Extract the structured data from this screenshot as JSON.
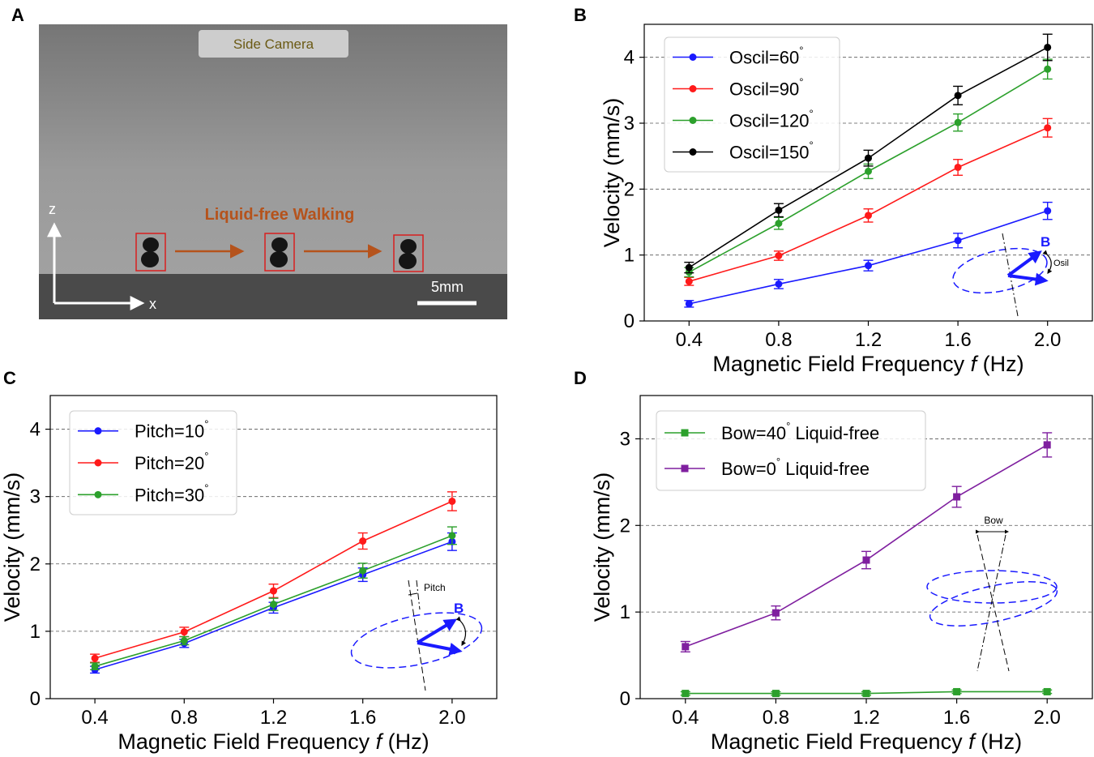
{
  "panel_labels": {
    "a": "A",
    "b": "B",
    "c": "C",
    "d": "D"
  },
  "photo": {
    "caption": "Side Camera",
    "walking_label": "Liquid-free Walking",
    "scale_label": "5mm",
    "axis_z": "z",
    "axis_x": "x",
    "colors": {
      "arrow": "#b5531c",
      "box": "#d91f1f"
    }
  },
  "chart_data": [
    {
      "id": "B",
      "type": "line",
      "xlabel": "Magnetic Field Frequency",
      "xlabel_var": "f",
      "xlabel_unit": "(Hz)",
      "ylabel": "Velocity (mm/s)",
      "x": [
        0.4,
        0.8,
        1.2,
        1.6,
        2.0
      ],
      "xlim": [
        0.2,
        2.2
      ],
      "ylim": [
        0,
        4.5
      ],
      "xticks": [
        "0.4",
        "0.8",
        "1.2",
        "1.6",
        "2.0"
      ],
      "yticks": [
        0,
        1,
        2,
        3,
        4
      ],
      "grid": "horizontal dashed",
      "marker": "circle",
      "legend_position": "top-left",
      "series": [
        {
          "name": "Oscil=60",
          "color": "#1a1aff",
          "values": [
            0.26,
            0.56,
            0.84,
            1.22,
            1.67
          ],
          "errors": [
            0.05,
            0.07,
            0.08,
            0.11,
            0.13
          ]
        },
        {
          "name": "Oscil=90",
          "color": "#ff1a1a",
          "values": [
            0.6,
            0.99,
            1.6,
            2.33,
            2.93
          ],
          "errors": [
            0.06,
            0.07,
            0.1,
            0.12,
            0.14
          ]
        },
        {
          "name": "Oscil=120",
          "color": "#2ca02c",
          "values": [
            0.74,
            1.48,
            2.27,
            3.01,
            3.82
          ],
          "errors": [
            0.07,
            0.09,
            0.11,
            0.13,
            0.15
          ]
        },
        {
          "name": "Oscil=150",
          "color": "#000000",
          "values": [
            0.81,
            1.68,
            2.47,
            3.42,
            4.15
          ],
          "errors": [
            0.08,
            0.1,
            0.12,
            0.14,
            0.2
          ]
        }
      ],
      "inset": {
        "vector_label": "B",
        "angle_label": "Osil"
      }
    },
    {
      "id": "C",
      "type": "line",
      "xlabel": "Magnetic Field Frequency",
      "xlabel_var": "f",
      "xlabel_unit": "(Hz)",
      "ylabel": "Velocity (mm/s)",
      "x": [
        0.4,
        0.8,
        1.2,
        1.6,
        2.0
      ],
      "xlim": [
        0.2,
        2.2
      ],
      "ylim": [
        0,
        4.5
      ],
      "xticks": [
        "0.4",
        "0.8",
        "1.2",
        "1.6",
        "2.0"
      ],
      "yticks": [
        0,
        1,
        2,
        3,
        4
      ],
      "grid": "horizontal dashed",
      "marker": "circle",
      "legend_position": "top-left",
      "series": [
        {
          "name": "Pitch=10",
          "color": "#1a1aff",
          "values": [
            0.43,
            0.82,
            1.35,
            1.84,
            2.33
          ],
          "errors": [
            0.05,
            0.06,
            0.08,
            0.1,
            0.13
          ]
        },
        {
          "name": "Pitch=20",
          "color": "#ff1a1a",
          "values": [
            0.6,
            0.99,
            1.6,
            2.34,
            2.93
          ],
          "errors": [
            0.06,
            0.07,
            0.1,
            0.12,
            0.14
          ]
        },
        {
          "name": "Pitch=30",
          "color": "#2ca02c",
          "values": [
            0.48,
            0.86,
            1.4,
            1.9,
            2.42
          ],
          "errors": [
            0.05,
            0.06,
            0.09,
            0.11,
            0.13
          ]
        }
      ],
      "inset": {
        "vector_label": "B",
        "angle_label": "Pitch"
      }
    },
    {
      "id": "D",
      "type": "line",
      "xlabel": "Magnetic Field Frequency",
      "xlabel_var": "f",
      "xlabel_unit": "(Hz)",
      "ylabel": "Velocity (mm/s)",
      "x": [
        0.4,
        0.8,
        1.2,
        1.6,
        2.0
      ],
      "xlim": [
        0.2,
        2.2
      ],
      "ylim": [
        0,
        3.5
      ],
      "xticks": [
        "0.4",
        "0.8",
        "1.2",
        "1.6",
        "2.0"
      ],
      "yticks": [
        0,
        1,
        2,
        3
      ],
      "grid": "horizontal dashed",
      "marker": "square",
      "legend_position": "top-left",
      "series": [
        {
          "name": "Bow=40",
          "name_suffix": "Liquid-free",
          "color": "#2ca02c",
          "values": [
            0.06,
            0.06,
            0.06,
            0.08,
            0.08
          ],
          "errors": [
            0.02,
            0.02,
            0.02,
            0.02,
            0.02
          ]
        },
        {
          "name": "Bow=0",
          "name_suffix": "Liquid-free",
          "color": "#7f1f9f",
          "values": [
            0.6,
            0.99,
            1.6,
            2.33,
            2.93
          ],
          "errors": [
            0.06,
            0.08,
            0.1,
            0.12,
            0.14
          ]
        }
      ],
      "inset": {
        "angle_label": "Bow"
      }
    }
  ]
}
